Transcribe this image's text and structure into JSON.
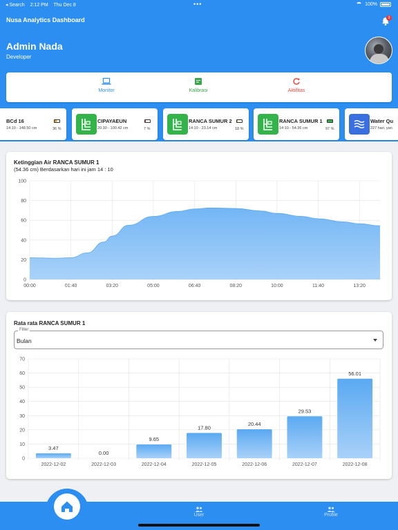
{
  "status_bar": {
    "back": "◂ Search",
    "time": "2:12 PM",
    "date": "Thu Dec 8",
    "battery": "100%"
  },
  "app_title": "Nusa Analytics Dashboard",
  "notifications": {
    "count": "3"
  },
  "user": {
    "name": "Admin Nada",
    "role": "Developer"
  },
  "menu": [
    {
      "label": "Monitor",
      "icon": "laptop-icon",
      "color": "#2b8ef0"
    },
    {
      "label": "Kalibrasi",
      "icon": "calibration-icon",
      "color": "#3aa64b"
    },
    {
      "label": "Aktifitas",
      "icon": "refresh-icon",
      "color": "#e84a3a"
    }
  ],
  "stations": [
    {
      "name": "BCd 16",
      "range": "14:10 - 148.50 cm",
      "battery_pct": "36 %",
      "battery_level": 0.36,
      "battery_color": "#f0a020",
      "icon": "well-icon",
      "icon_color": "#33b34a"
    },
    {
      "name": "CIPAYAEUN",
      "range": "20:30 - 100.42 cm",
      "battery_pct": "7 %",
      "battery_level": 0.07,
      "battery_color": "#e63a3a",
      "icon": "well-icon",
      "icon_color": "#33b34a"
    },
    {
      "name": "RANCA SUMUR 2",
      "range": "14:10 - 23.14 cm",
      "battery_pct": "18 %",
      "battery_level": 0.18,
      "battery_color": "#f0a020",
      "icon": "well-icon",
      "icon_color": "#33b34a"
    },
    {
      "name": "RANCA SUMUR 1",
      "range": "14:10 - 54.36 cm",
      "battery_pct": "97 %",
      "battery_level": 0.97,
      "battery_color": "#33b34a",
      "icon": "well-icon",
      "icon_color": "#33b34a"
    },
    {
      "name": "Water Qu",
      "range": "227 hari. yan",
      "battery_pct": "",
      "battery_level": 0,
      "battery_color": "#888888",
      "icon": "water-wave-icon",
      "icon_color": "#3a6fe0"
    }
  ],
  "level_chart": {
    "title": "Ketinggian Air RANCA SUMUR 1",
    "subtitle": "(54.36 cm) Berdasarkan hari ini jam 14 : 10"
  },
  "avg_chart": {
    "title": "Rata rata RANCA SUMUR 1",
    "filter_label": "Filter",
    "filter_value": "Bulan"
  },
  "chart_data": [
    {
      "type": "area",
      "x": [
        "00:00",
        "00:30",
        "01:00",
        "01:40",
        "02:20",
        "03:00",
        "03:20",
        "04:00",
        "05:00",
        "06:00",
        "06:40",
        "07:20",
        "08:20",
        "09:20",
        "10:00",
        "11:00",
        "11:40",
        "12:40",
        "13:20",
        "14:10"
      ],
      "values": [
        22,
        21.8,
        21.5,
        22,
        27,
        38,
        44,
        55,
        64,
        69,
        71.5,
        72.5,
        72,
        69.5,
        67,
        64,
        61.5,
        58.5,
        56.5,
        54.4
      ],
      "xticks": [
        "00:00",
        "01:40",
        "03:20",
        "05:00",
        "06:40",
        "08:20",
        "10:00",
        "11:40",
        "13:20"
      ],
      "yticks": [
        0,
        20,
        40,
        60,
        80,
        100
      ],
      "ylim": [
        0,
        100
      ],
      "grid": true,
      "color": "#5aa9f2"
    },
    {
      "type": "bar",
      "categories": [
        "2022-12-02",
        "2022-12-03",
        "2022-12-04",
        "2022-12-05",
        "2022-12-06",
        "2022-12-07",
        "2022-12-08"
      ],
      "values": [
        3.47,
        0.0,
        9.65,
        17.8,
        20.44,
        29.53,
        56.01
      ],
      "labels": [
        "3.47",
        "0.00",
        "9.65",
        "17.80",
        "20.44",
        "29.53",
        "56.01"
      ],
      "yticks": [
        0,
        10,
        20,
        30,
        40,
        50,
        60,
        70
      ],
      "ylim": [
        0,
        70
      ],
      "grid": true,
      "color": "#5aa9f2"
    }
  ],
  "bottom_nav": [
    {
      "label": "",
      "icon": "home-icon"
    },
    {
      "label": "User",
      "icon": "users-icon"
    },
    {
      "label": "Profile",
      "icon": "profile-icon"
    }
  ]
}
